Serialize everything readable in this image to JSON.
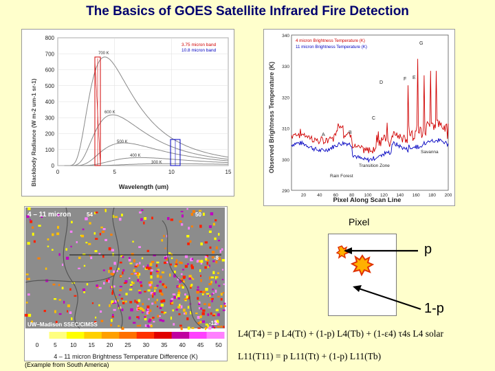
{
  "slide": {
    "title": "The Basics of GOES Satellite Infrared Fire Detection",
    "caption": "(Example from South America)",
    "pixel_label": "Pixel",
    "p_label": "p",
    "one_minus_p_label": "1-p",
    "eq1": "L4(T4) = p L4(Tt) + (1-p) L4(Tb) + (1-ε4) τ4s L4 solar",
    "eq2": "L11(T11) = p L11(Tt) + (1-p) L11(Tb)"
  },
  "planck_chart": {
    "ylabel": "Blackbody Radiance (W m-2 um-1 sr-1)",
    "xlabel": "Wavelength (um)",
    "xticks": [
      "0",
      "5",
      "10",
      "15"
    ],
    "yticks": [
      "0",
      "100",
      "200",
      "300",
      "400",
      "500",
      "600",
      "700",
      "800"
    ],
    "legend": [
      "3.75 micron band",
      "10.8 micron band"
    ],
    "curve_labels": [
      "700 K",
      "600 K",
      "500 K",
      "400 K",
      "300 K"
    ]
  },
  "scan_chart": {
    "ylabel": "Observed Brightness Temperature (K)",
    "xlabel": "Pixel Along Scan Line",
    "xticks": [
      "20",
      "40",
      "60",
      "80",
      "100",
      "120",
      "140",
      "160",
      "180",
      "200"
    ],
    "yticks": [
      "290",
      "300",
      "310",
      "320",
      "330",
      "340"
    ],
    "legend": [
      "4 micron Brightness Temperature (K)",
      "11 micron Brightness Temperature (K)"
    ],
    "point_labels": [
      "A",
      "B",
      "C",
      "D",
      "E",
      "F",
      "G"
    ],
    "region_labels": [
      "Savanna",
      "Transition Zone",
      "Rain Forest"
    ]
  },
  "satellite_image": {
    "title": "4 – 11 micron",
    "lon_label": "54",
    "lon_label2": "50",
    "lat_label": "-8",
    "lat_label2": "-12",
    "credit": "UW–Madison SSEC/CIMSS",
    "colorbar_ticks": [
      "0",
      "5",
      "10",
      "15",
      "20",
      "25",
      "30",
      "35",
      "40",
      "45",
      "50"
    ],
    "colorbar_label": "4 – 11 micron Brightness Temperature Difference (K)"
  },
  "colors": {
    "background": "#ffffcc",
    "title": "#00006e",
    "band_375": "#d00000",
    "band_108": "#0000c0"
  }
}
